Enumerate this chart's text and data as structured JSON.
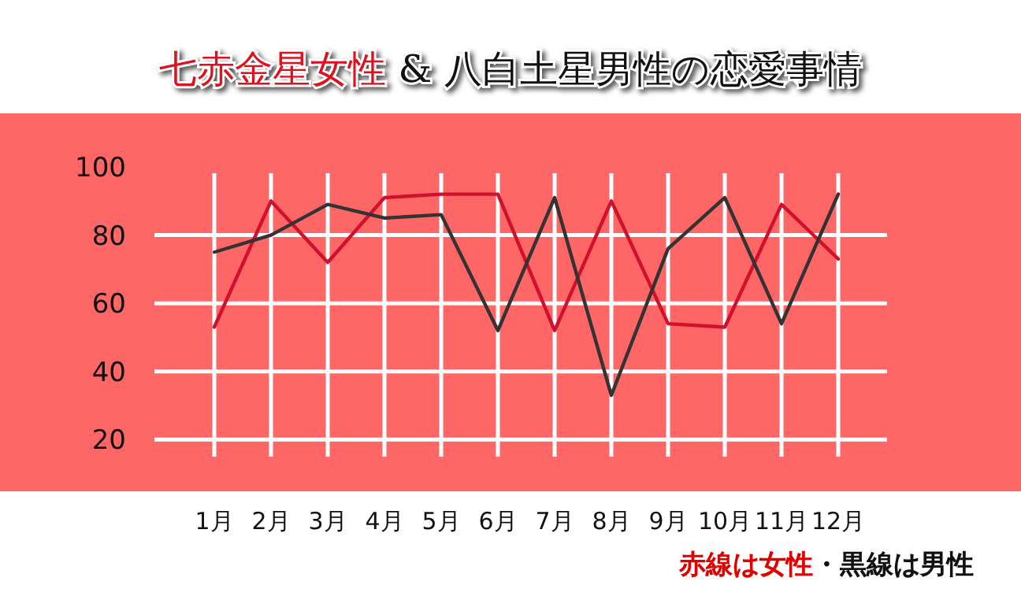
{
  "chart_data": {
    "type": "line",
    "title": "七赤金星女性 & 八白土星男性の恋愛事情",
    "categories": [
      "1月",
      "2月",
      "3月",
      "4月",
      "5月",
      "6月",
      "7月",
      "8月",
      "9月",
      "10月",
      "11月",
      "12月"
    ],
    "series": [
      {
        "color": "#d0102c",
        "values": [
          53,
          90,
          72,
          91,
          92,
          92,
          52,
          90,
          54,
          53,
          89,
          73
        ]
      },
      {
        "color": "#333333",
        "values": [
          75,
          80,
          89,
          85,
          86,
          52,
          91,
          33,
          76,
          91,
          54,
          92
        ]
      }
    ],
    "ylim": [
      15,
      100
    ],
    "yticks": [
      20,
      40,
      60,
      80,
      100
    ],
    "grid": true,
    "marker": "none",
    "line_style": "solid",
    "annotations": [
      "赤線は女性",
      "・黒線は男性"
    ]
  }
}
